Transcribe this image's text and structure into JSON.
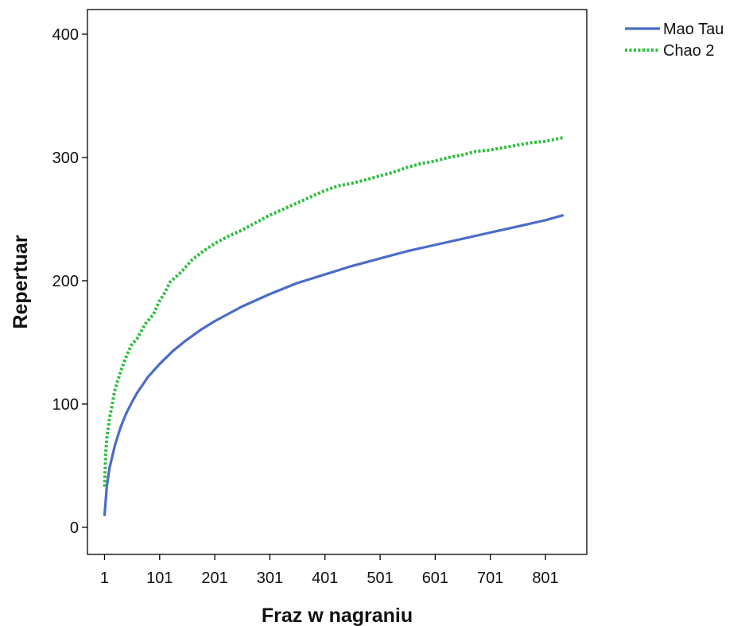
{
  "chart_data": {
    "type": "line",
    "title": "",
    "xlabel": "Fraz w nagraniu",
    "ylabel": "Repertuar",
    "xlim": [
      -30,
      876
    ],
    "ylim": [
      -22,
      420
    ],
    "x_ticks": [
      1,
      101,
      201,
      301,
      401,
      501,
      601,
      701,
      801
    ],
    "y_ticks": [
      0,
      100,
      200,
      300,
      400
    ],
    "grid": false,
    "legend_position": "top-right, outside plot",
    "series": [
      {
        "name": "Mao Tau",
        "color": "#4A6CC9",
        "line_style": "solid",
        "x": [
          1,
          5,
          10,
          20,
          30,
          40,
          50,
          60,
          80,
          100,
          125,
          150,
          175,
          200,
          250,
          300,
          350,
          400,
          450,
          500,
          550,
          600,
          650,
          700,
          750,
          800,
          832
        ],
        "values": [
          10,
          33,
          48,
          67,
          81,
          92,
          101,
          109,
          122,
          132,
          143,
          152,
          160,
          167,
          179,
          189,
          198,
          205,
          212,
          218,
          224,
          229,
          234,
          239,
          244,
          249,
          253
        ]
      },
      {
        "name": "Chao 2",
        "color": "#2DBE3E",
        "line_style": "dotted",
        "x": [
          1,
          3,
          5,
          10,
          15,
          20,
          30,
          40,
          50,
          60,
          75,
          90,
          100,
          110,
          120,
          140,
          160,
          180,
          200,
          225,
          250,
          275,
          300,
          325,
          350,
          375,
          400,
          425,
          450,
          475,
          500,
          525,
          550,
          575,
          600,
          625,
          650,
          675,
          700,
          725,
          750,
          775,
          800,
          832
        ],
        "values": [
          33,
          60,
          72,
          88,
          100,
          112,
          126,
          138,
          148,
          153,
          165,
          173,
          183,
          190,
          199,
          207,
          217,
          224,
          230,
          236,
          241,
          247,
          253,
          258,
          263,
          268,
          273,
          277,
          279,
          282,
          285,
          288,
          292,
          295,
          297,
          300,
          302,
          305,
          306,
          308,
          310,
          312,
          313,
          316
        ]
      }
    ]
  }
}
